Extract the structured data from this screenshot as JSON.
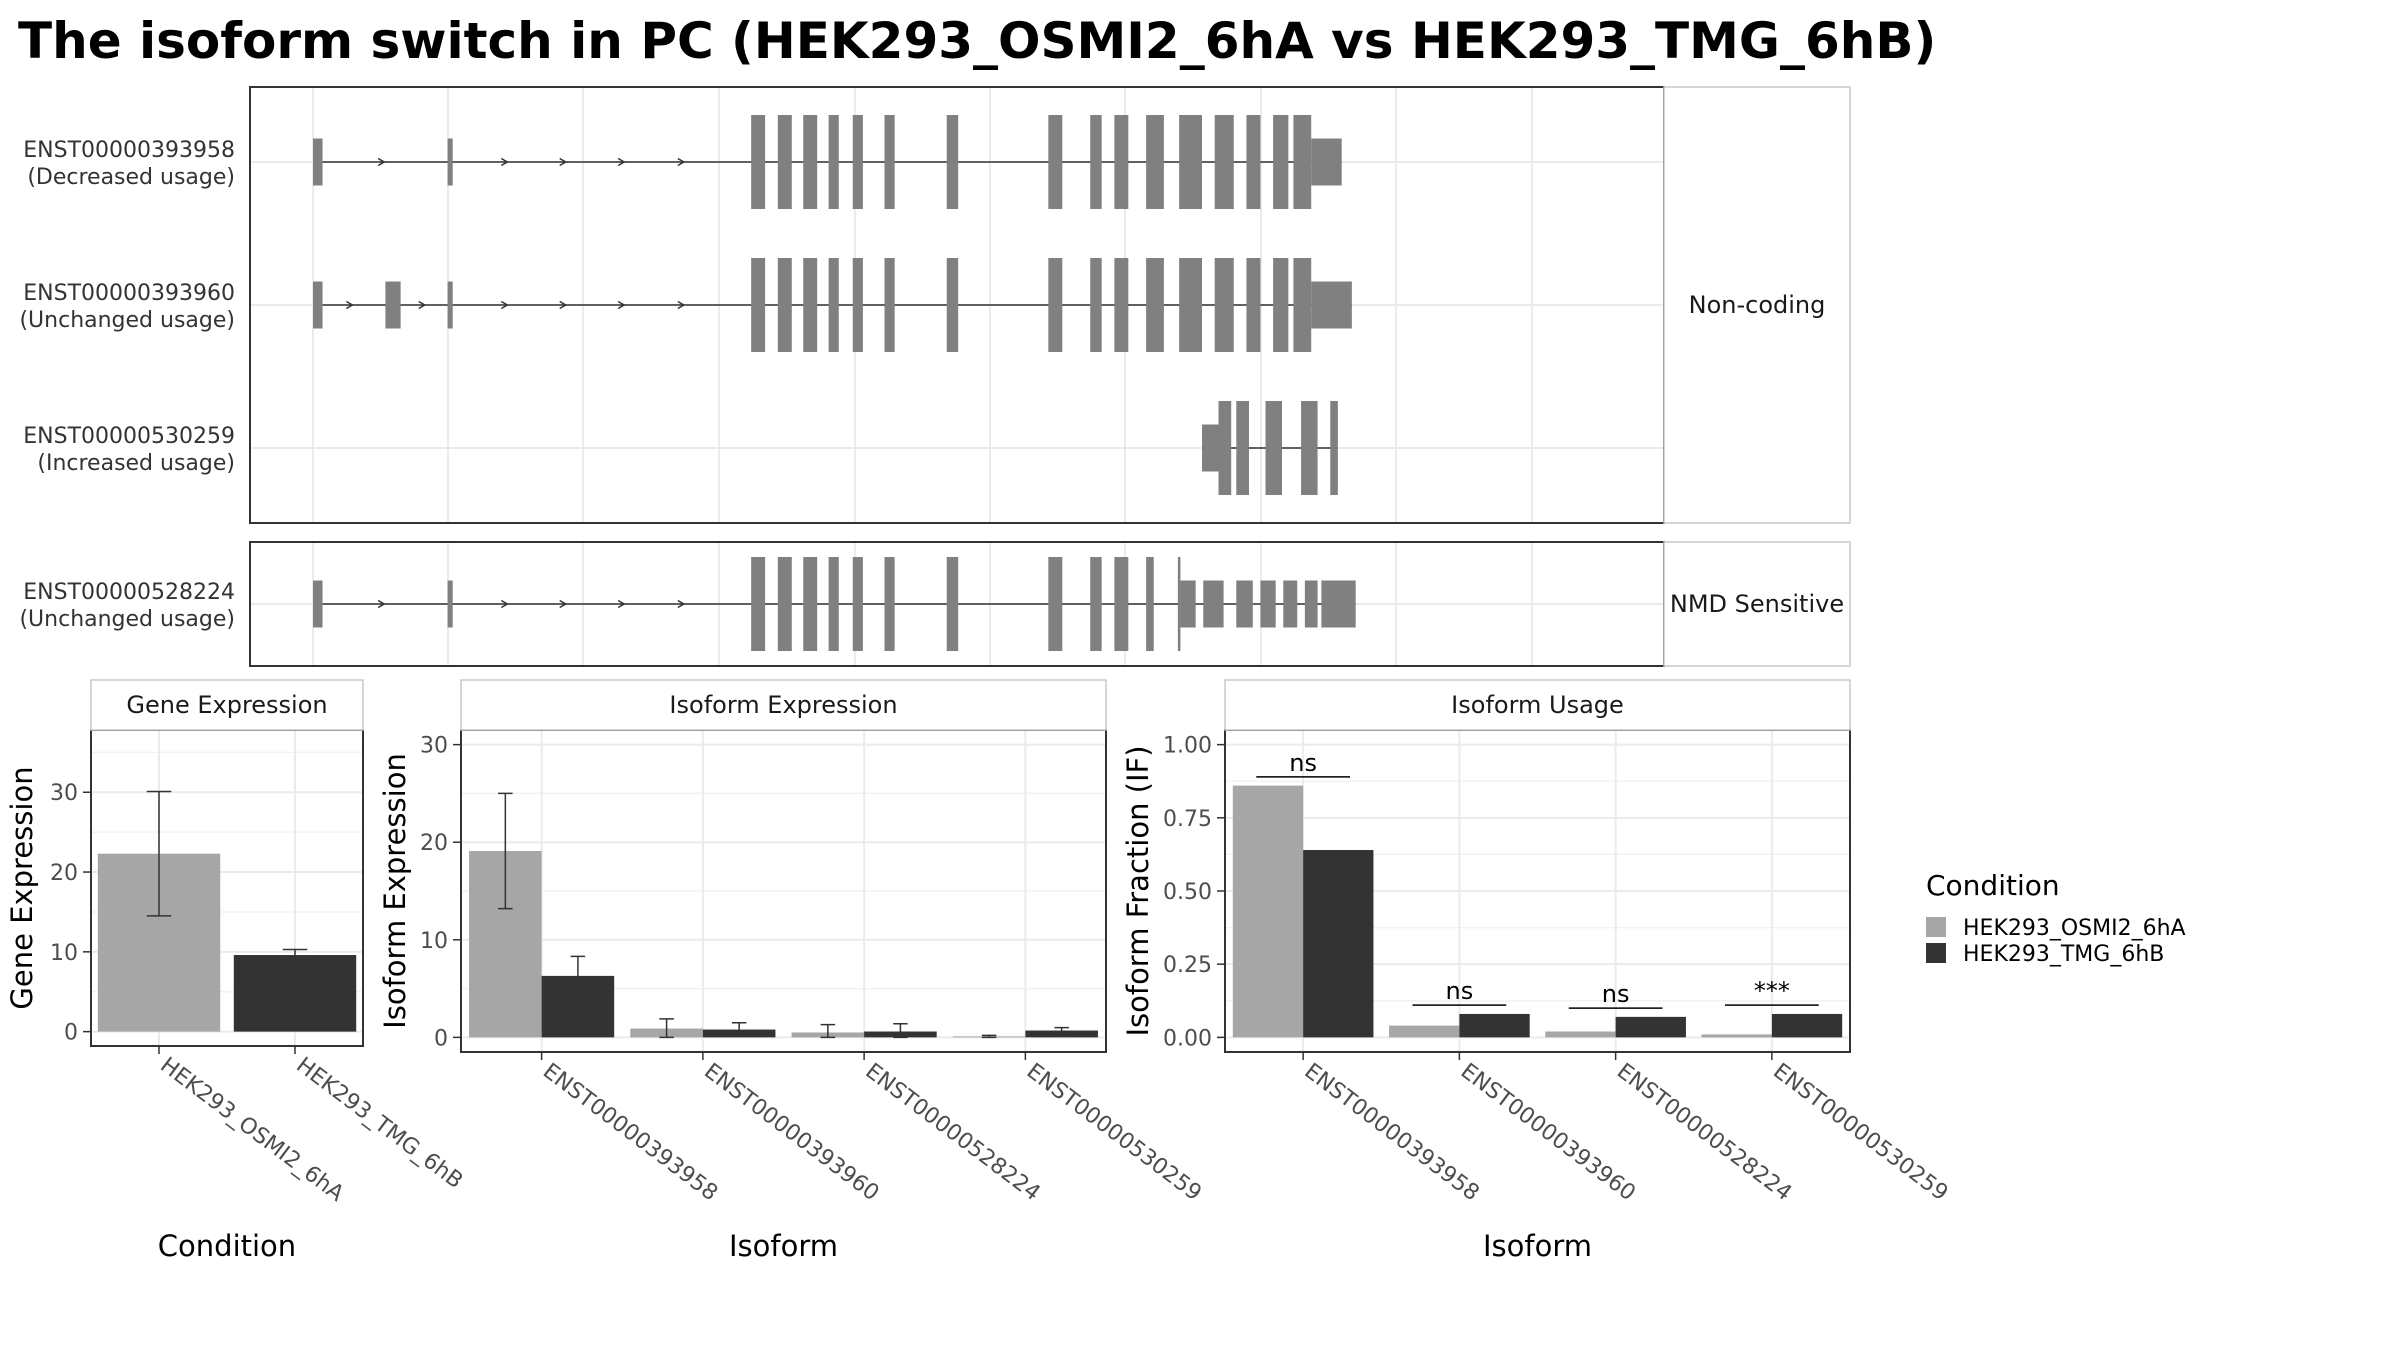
{
  "title": "The isoform switch in PC (HEK293_OSMI2_6hA vs HEK293_TMG_6hB)",
  "colors": {
    "cond1": "#a6a6a6",
    "cond2": "#333333",
    "exon": "#808080",
    "grid": "#ebebeb",
    "panel_border": "#333333",
    "strip_border": "#c8c8c8"
  },
  "gene_structure": {
    "coord_range": [
      0,
      1000
    ],
    "groups": [
      {
        "label": "Non-coding",
        "transcripts": [
          {
            "id": "ENST00000393958",
            "usage_label": "(Decreased usage)",
            "exons": [
              [
                0,
                7.5,
                0.5
              ],
              [
                106,
                110,
                0.5
              ],
              [
                345,
                356,
                1
              ],
              [
                366,
                377,
                1
              ],
              [
                386,
                397,
                1
              ],
              [
                406,
                414,
                1
              ],
              [
                425,
                433,
                1
              ],
              [
                450,
                458,
                1
              ],
              [
                499,
                508,
                1
              ],
              [
                579,
                590,
                1
              ],
              [
                612,
                621,
                1
              ],
              [
                631,
                642,
                1
              ],
              [
                656,
                670,
                1
              ],
              [
                682,
                700,
                1
              ],
              [
                710,
                725,
                1
              ],
              [
                735,
                746,
                1
              ],
              [
                756,
                768,
                1
              ],
              [
                772,
                786,
                1
              ],
              [
                786,
                810,
                0.5
              ]
            ],
            "arrows": [
              56,
              153,
              199,
              245,
              292,
              642
            ]
          },
          {
            "id": "ENST00000393960",
            "usage_label": "(Unchanged usage)",
            "exons": [
              [
                0,
                7.5,
                0.5
              ],
              [
                57,
                69,
                0.5
              ],
              [
                106,
                110,
                0.5
              ],
              [
                345,
                356,
                1
              ],
              [
                366,
                377,
                1
              ],
              [
                386,
                397,
                1
              ],
              [
                406,
                414,
                1
              ],
              [
                425,
                433,
                1
              ],
              [
                450,
                458,
                1
              ],
              [
                499,
                508,
                1
              ],
              [
                579,
                590,
                1
              ],
              [
                612,
                621,
                1
              ],
              [
                631,
                642,
                1
              ],
              [
                656,
                670,
                1
              ],
              [
                682,
                700,
                1
              ],
              [
                710,
                725,
                1
              ],
              [
                735,
                746,
                1
              ],
              [
                756,
                768,
                1
              ],
              [
                772,
                786,
                1
              ],
              [
                786,
                818,
                0.5
              ]
            ],
            "arrows": [
              31,
              88,
              153,
              199,
              245,
              292,
              642
            ]
          },
          {
            "id": "ENST00000530259",
            "usage_label": "(Increased usage)",
            "exons": [
              [
                700,
                713,
                0.5
              ],
              [
                713,
                723,
                1
              ],
              [
                727,
                737,
                1
              ],
              [
                750,
                763,
                1
              ],
              [
                778,
                791,
                1
              ],
              [
                801,
                807,
                1
              ]
            ],
            "arrows": []
          }
        ]
      },
      {
        "label": "NMD Sensitive",
        "transcripts": [
          {
            "id": "ENST00000528224",
            "usage_label": "(Unchanged usage)",
            "exons": [
              [
                0,
                7.5,
                0.5
              ],
              [
                106,
                110,
                0.5
              ],
              [
                345,
                356,
                1
              ],
              [
                366,
                377,
                1
              ],
              [
                386,
                397,
                1
              ],
              [
                406,
                414,
                1
              ],
              [
                425,
                433,
                1
              ],
              [
                450,
                458,
                1
              ],
              [
                499,
                508,
                1
              ],
              [
                579,
                590,
                1
              ],
              [
                612,
                621,
                1
              ],
              [
                631,
                642,
                1
              ],
              [
                656,
                662,
                1
              ],
              [
                681,
                683,
                1
              ],
              [
                683,
                695,
                0.5
              ],
              [
                701,
                717,
                0.5
              ],
              [
                727,
                740,
                0.5
              ],
              [
                746,
                758,
                0.5
              ],
              [
                764,
                775,
                0.5
              ],
              [
                781,
                791,
                0.5
              ],
              [
                794,
                821,
                0.5
              ]
            ],
            "arrows": [
              56,
              153,
              199,
              245,
              292,
              642
            ]
          }
        ]
      }
    ]
  },
  "chart_data": [
    {
      "type": "bar",
      "title": "Gene Expression",
      "xlabel": "Condition",
      "ylabel": "Gene Expression",
      "ylim": [
        -1.8,
        37.8
      ],
      "yticks": [
        0,
        10,
        20,
        30
      ],
      "categories": [
        "HEK293_OSMI2_6hA",
        "HEK293_TMG_6hB"
      ],
      "values": [
        22.3,
        9.6
      ],
      "errors": [
        [
          14.5,
          30.1
        ],
        [
          9.0,
          10.3
        ]
      ]
    },
    {
      "type": "bar",
      "title": "Isoform Expression",
      "xlabel": "Isoform",
      "ylabel": "Isoform Expression",
      "ylim": [
        -1.5,
        31.5
      ],
      "yticks": [
        0,
        10,
        20,
        30
      ],
      "categories": [
        "ENST00000393958",
        "ENST00000393960",
        "ENST00000528224",
        "ENST00000530259"
      ],
      "series": [
        {
          "name": "HEK293_OSMI2_6hA",
          "values": [
            19.1,
            0.9,
            0.5,
            0.1
          ],
          "errors": [
            [
              13.2,
              25.0
            ],
            [
              0.0,
              1.9
            ],
            [
              0.0,
              1.3
            ],
            [
              0.0,
              0.2
            ]
          ]
        },
        {
          "name": "HEK293_TMG_6hB",
          "values": [
            6.3,
            0.8,
            0.6,
            0.7
          ],
          "errors": [
            [
              4.4,
              8.3
            ],
            [
              0.2,
              1.5
            ],
            [
              0.0,
              1.4
            ],
            [
              0.4,
              1.0
            ]
          ]
        }
      ]
    },
    {
      "type": "bar",
      "title": "Isoform Usage",
      "xlabel": "Isoform",
      "ylabel": "Isoform Fraction (IF)",
      "ylim": [
        -0.05,
        1.05
      ],
      "yticks": [
        0,
        0.25,
        0.5,
        0.75,
        1
      ],
      "ytick_labels": [
        "0.00",
        "0.25",
        "0.50",
        "0.75",
        "1.00"
      ],
      "categories": [
        "ENST00000393958",
        "ENST00000393960",
        "ENST00000528224",
        "ENST00000530259"
      ],
      "series": [
        {
          "name": "HEK293_OSMI2_6hA",
          "values": [
            0.86,
            0.04,
            0.02,
            0.01
          ]
        },
        {
          "name": "HEK293_TMG_6hB",
          "values": [
            0.64,
            0.08,
            0.07,
            0.08
          ]
        }
      ],
      "significance": [
        "ns",
        "ns",
        "ns",
        "***"
      ]
    }
  ],
  "legend": {
    "title": "Condition",
    "items": [
      "HEK293_OSMI2_6hA",
      "HEK293_TMG_6hB"
    ]
  }
}
